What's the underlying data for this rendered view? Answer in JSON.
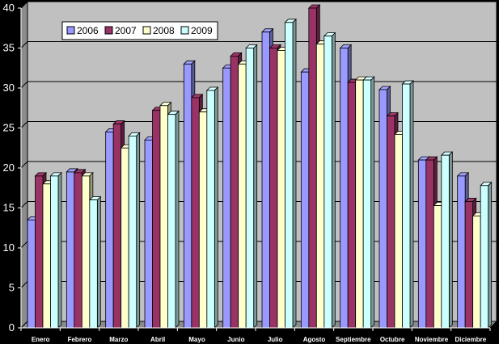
{
  "chart_data": {
    "type": "bar",
    "categories": [
      "Enero",
      "Febrero",
      "Marzo",
      "Abril",
      "Mayo",
      "Junio",
      "Julio",
      "Agosto",
      "Septiembre",
      "Octubre",
      "Noviembre",
      "Diciembre"
    ],
    "series": [
      {
        "name": "2006",
        "color": "#9999ff",
        "values": [
          13.5,
          19.5,
          24.5,
          23.5,
          33,
          32.5,
          37,
          32,
          35,
          29.8,
          21,
          19
        ]
      },
      {
        "name": "2007",
        "color": "#993366",
        "values": [
          19,
          19.4,
          25.5,
          27.2,
          28.8,
          34,
          35,
          40,
          30.7,
          26.5,
          21,
          15.8
        ]
      },
      {
        "name": "2008",
        "color": "#ffffcc",
        "values": [
          18,
          19,
          22.5,
          27.8,
          27,
          33,
          34.7,
          35.5,
          31,
          24.2,
          15.3,
          14
        ]
      },
      {
        "name": "2009",
        "color": "#ccffff",
        "values": [
          19,
          16,
          24,
          26.7,
          29.7,
          35,
          38.2,
          36.5,
          31,
          30.5,
          21.6,
          17.8
        ]
      }
    ],
    "ylim": [
      0,
      40
    ],
    "yticks": [
      0,
      5,
      10,
      15,
      20,
      25,
      30,
      35,
      40
    ],
    "grid": true,
    "legend_position": "top-left",
    "plot_background": "#c0c0c0",
    "page_background": "#000000"
  }
}
